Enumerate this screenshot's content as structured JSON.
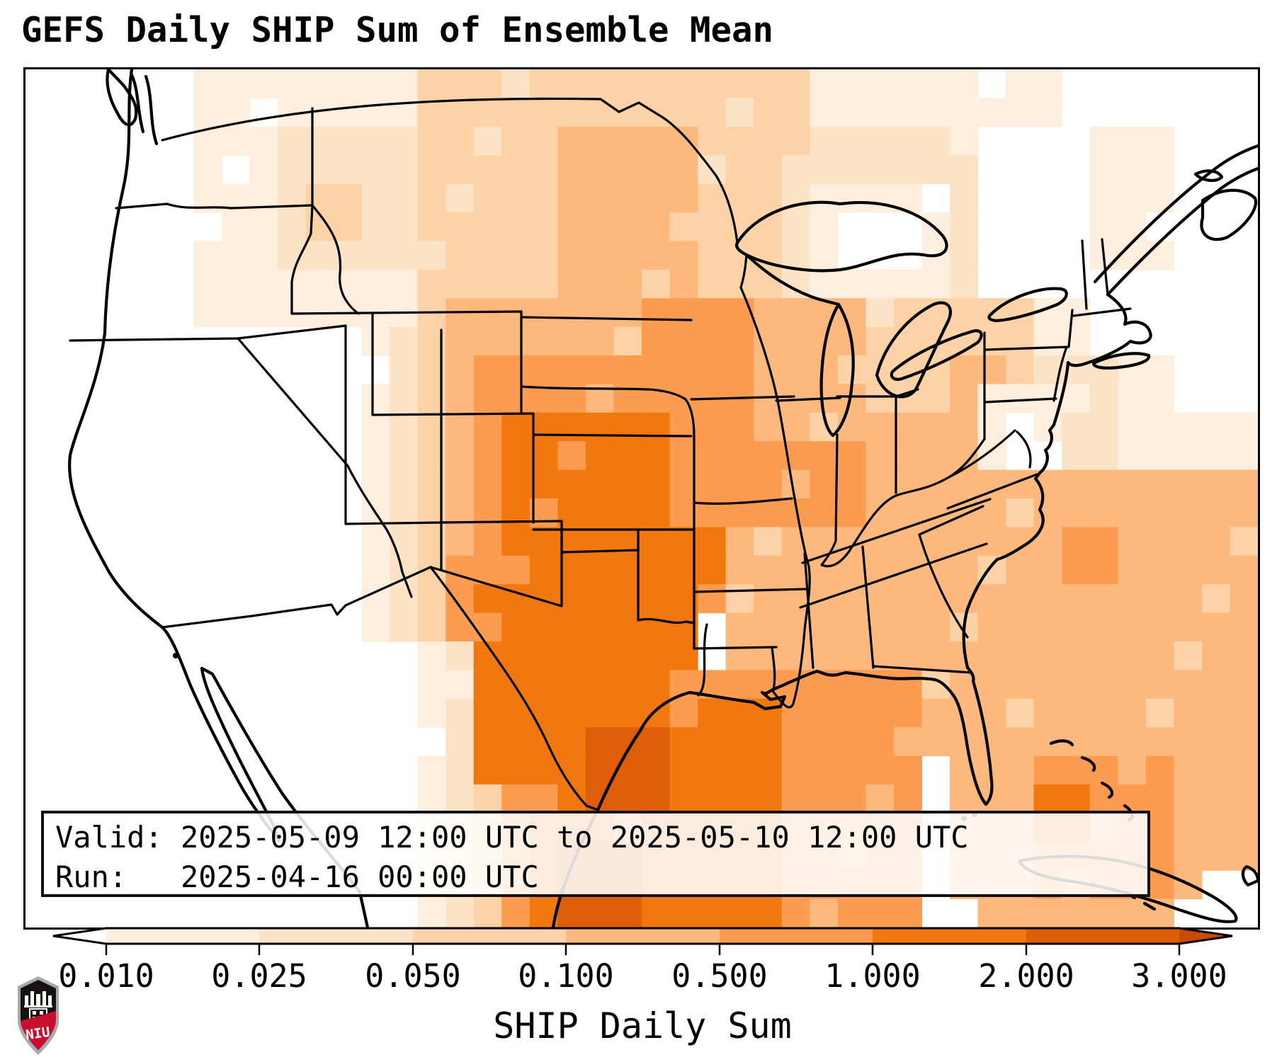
{
  "title": "GEFS Daily SHIP Sum of Ensemble Mean",
  "info_box": {
    "line1": "Valid: 2025-05-09 12:00 UTC to 2025-05-10 12:00 UTC",
    "line2": "Run:   2025-04-16 00:00 UTC"
  },
  "colorbar": {
    "label": "SHIP Daily Sum",
    "tick_labels": [
      "0.010",
      "0.025",
      "0.050",
      "0.100",
      "0.500",
      "1.000",
      "2.000",
      "3.000"
    ],
    "bin_colors": [
      "#feeedd",
      "#fde3c6",
      "#fdd2a6",
      "#fcb87d",
      "#fd9c51",
      "#f1770e",
      "#de5d08"
    ],
    "under_color": "#ffffff",
    "over_color": "#c84c04"
  },
  "logo": {
    "text": "NIU",
    "shield_dark": "#17110f",
    "shield_red": "#c8102e",
    "shield_border": "#a7a9ac"
  },
  "chart_data": {
    "type": "heatmap",
    "title": "GEFS Daily SHIP Sum of Ensemble Mean",
    "variable": "SHIP Daily Sum",
    "valid": "2025-05-09 12:00 UTC to 2025-05-10 12:00 UTC",
    "run": "2025-04-16 00:00 UTC",
    "levels": [
      0.01,
      0.025,
      0.05,
      0.1,
      0.5,
      1.0,
      2.0,
      3.0
    ],
    "legend_position": "bottom",
    "grid": {
      "cols": 44,
      "rows": 30,
      "note": "regions are [col0,row0,col1,row1,binIndex]; bin 0 = below 0.010 (white), bins 1-7 map to colorbar.bin_colors, painted in order over a zero base",
      "regions": [
        [
          10,
          0,
          33,
          2,
          2
        ],
        [
          27,
          0,
          36,
          1,
          1
        ],
        [
          6,
          0,
          13,
          8,
          1
        ],
        [
          9,
          2,
          13,
          6,
          2
        ],
        [
          10,
          4,
          11,
          5,
          3
        ],
        [
          14,
          0,
          18,
          8,
          3
        ],
        [
          19,
          0,
          23,
          1,
          3
        ],
        [
          19,
          2,
          23,
          8,
          4
        ],
        [
          24,
          0,
          27,
          2,
          3
        ],
        [
          24,
          3,
          26,
          8,
          3
        ],
        [
          27,
          3,
          33,
          8,
          2
        ],
        [
          28,
          4,
          32,
          7,
          1
        ],
        [
          29,
          5,
          31,
          6,
          0
        ],
        [
          12,
          8,
          12,
          19,
          1
        ],
        [
          13,
          8,
          13,
          19,
          2
        ],
        [
          14,
          8,
          14,
          19,
          3
        ],
        [
          15,
          8,
          15,
          19,
          4
        ],
        [
          16,
          8,
          23,
          12,
          4
        ],
        [
          22,
          8,
          26,
          16,
          5
        ],
        [
          26,
          8,
          29,
          12,
          4
        ],
        [
          30,
          8,
          35,
          13,
          3
        ],
        [
          33,
          10,
          34,
          11,
          4
        ],
        [
          36,
          8,
          39,
          12,
          1
        ],
        [
          38,
          0,
          43,
          9,
          0
        ],
        [
          38,
          2,
          40,
          6,
          1
        ],
        [
          36,
          10,
          43,
          15,
          2
        ],
        [
          39,
          10,
          43,
          13,
          1
        ],
        [
          41,
          10,
          43,
          11,
          0
        ],
        [
          16,
          10,
          23,
          18,
          5
        ],
        [
          23,
          12,
          25,
          18,
          5
        ],
        [
          17,
          12,
          22,
          18,
          6
        ],
        [
          28,
          12,
          33,
          16,
          4
        ],
        [
          27,
          13,
          29,
          15,
          5
        ],
        [
          34,
          11,
          36,
          14,
          1
        ],
        [
          35,
          12,
          35,
          13,
          0
        ],
        [
          25,
          16,
          33,
          21,
          4
        ],
        [
          23,
          16,
          24,
          17,
          6
        ],
        [
          31,
          14,
          43,
          23,
          4
        ],
        [
          37,
          16,
          38,
          17,
          5
        ],
        [
          15,
          17,
          16,
          24,
          5
        ],
        [
          16,
          18,
          23,
          25,
          6
        ],
        [
          20,
          23,
          22,
          27,
          7
        ],
        [
          23,
          21,
          31,
          29,
          5
        ],
        [
          23,
          22,
          26,
          29,
          6
        ],
        [
          33,
          20,
          37,
          28,
          4
        ],
        [
          35,
          22,
          35,
          25,
          3
        ],
        [
          35,
          23,
          35,
          24,
          2
        ],
        [
          8,
          20,
          13,
          29,
          0
        ],
        [
          14,
          20,
          14,
          29,
          1
        ],
        [
          15,
          20,
          15,
          29,
          2
        ],
        [
          16,
          25,
          16,
          29,
          3
        ],
        [
          17,
          25,
          18,
          29,
          5
        ],
        [
          18,
          26,
          23,
          29,
          6
        ],
        [
          19,
          27,
          21,
          29,
          7
        ],
        [
          34,
          23,
          43,
          29,
          4
        ],
        [
          36,
          24,
          40,
          28,
          5
        ],
        [
          36,
          25,
          37,
          26,
          6
        ],
        [
          41,
          29,
          43,
          29,
          0
        ],
        [
          42,
          28,
          43,
          28,
          0
        ]
      ]
    }
  }
}
